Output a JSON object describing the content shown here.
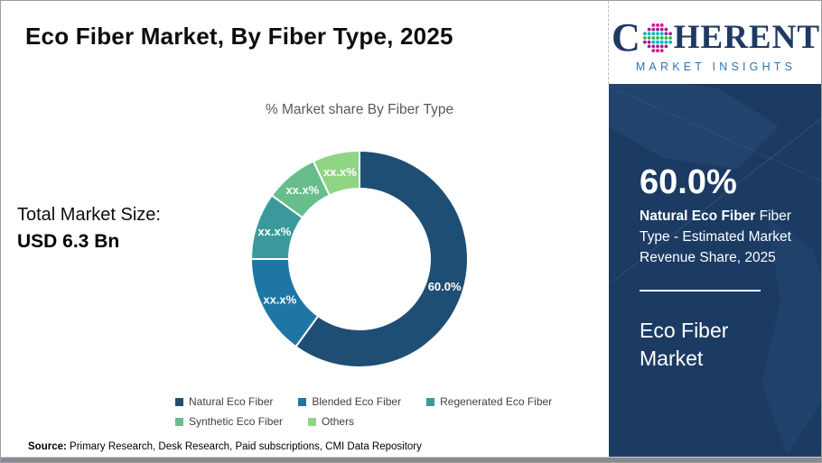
{
  "page": {
    "title": "Eco Fiber Market, By Fiber Type, 2025",
    "source_label": "Source:",
    "source_text": " Primary Research, Desk Research, Paid subscriptions, CMI Data Repository"
  },
  "left_panel": {
    "total_label": "Total Market Size:",
    "total_value": "USD 6.3 Bn"
  },
  "chart_data": {
    "type": "pie",
    "donut": true,
    "title": "% Market share By Fiber Type",
    "categories": [
      "Natural Eco Fiber",
      "Blended Eco Fiber",
      "Regenerated Eco Fiber",
      "Synthetic Eco Fiber",
      "Others"
    ],
    "values": [
      60,
      15,
      10,
      8,
      7
    ],
    "slice_labels": [
      "60.0%",
      "xx.x%",
      "xx.x%",
      "xx.x%",
      "xx.x%"
    ],
    "colors": [
      "#1f4e74",
      "#1e76a4",
      "#3a9a9b",
      "#68bd8c",
      "#90d584"
    ],
    "legend_position": "bottom",
    "start_angle_deg": 0,
    "direction": "clockwise"
  },
  "sidebar": {
    "logo": {
      "letter_c": "C",
      "word_rest": "HERENT",
      "tagline": "MARKET INSIGHTS",
      "globe_icon": "dotted-globe-icon",
      "text_color": "#1f3864",
      "tagline_color": "#2e74b5",
      "globe_dot_colors": [
        "#ec008c",
        "#92278f",
        "#00b7bd",
        "#39b54a"
      ]
    },
    "stat_value": "60.0%",
    "stat_bold": "Natural Eco Fiber",
    "stat_rest": " Fiber Type - Estimated Market Revenue Share, 2025",
    "market_name": "Eco Fiber Market",
    "panel_color": "#1b3b63"
  }
}
